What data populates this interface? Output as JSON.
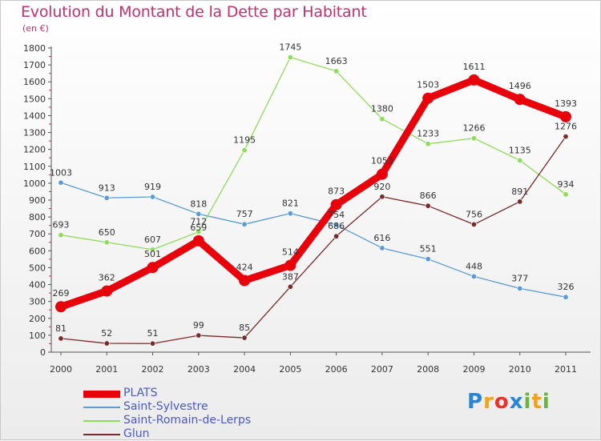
{
  "title": "Evolution du Montant de la Dette par Habitant",
  "subtitle": "(en €)",
  "brand": {
    "letters": [
      "P",
      "r",
      "o",
      "x",
      "i",
      "t",
      "i"
    ],
    "colors": [
      "#2a84d6",
      "#f1a21a",
      "#e6352b",
      "#2a84d6",
      "#6cb33f",
      "#f1a21a",
      "#6cb33f"
    ]
  },
  "chart_data": {
    "type": "line",
    "title": "Evolution du Montant de la Dette par Habitant",
    "subtitle": "(en €)",
    "categories": [
      "2000",
      "2001",
      "2002",
      "2003",
      "2004",
      "2005",
      "2006",
      "2007",
      "2008",
      "2009",
      "2010",
      "2011"
    ],
    "ylim": [
      0,
      1800
    ],
    "yticks": [
      "0",
      "100",
      "200",
      "300",
      "400",
      "500",
      "600",
      "700",
      "800",
      "900",
      "1000",
      "1100",
      "1200",
      "1300",
      "1400",
      "1500",
      "1600",
      "1700",
      "1800"
    ],
    "grid": false,
    "legend_position": "bottom-left",
    "series": [
      {
        "name": "PLATS",
        "color": "#e8000b",
        "values": [
          269,
          362,
          501,
          659,
          424,
          514,
          873,
          1053,
          1503,
          1611,
          1496,
          1393
        ],
        "labels": [
          "269",
          "362",
          "501",
          "659",
          "424",
          "514",
          "873",
          "1053",
          "1503",
          "1611",
          "1496",
          "1393"
        ]
      },
      {
        "name": "Saint-Sylvestre",
        "color": "#5b9bd5",
        "values": [
          1003,
          913,
          919,
          818,
          757,
          821,
          754,
          616,
          551,
          448,
          377,
          326
        ],
        "labels": [
          "1003",
          "913",
          "919",
          "818",
          "757",
          "821",
          "754",
          "616",
          "551",
          "448",
          "377",
          "326"
        ]
      },
      {
        "name": "Saint-Romain-de-Lerps",
        "color": "#8fdc5a",
        "values": [
          693,
          650,
          607,
          712,
          1195,
          1745,
          1663,
          1380,
          1233,
          1266,
          1135,
          934
        ],
        "labels": [
          "693",
          "650",
          "607",
          "712",
          "1195",
          "1745",
          "1663",
          "1380",
          "1233",
          "1266",
          "1135",
          "934"
        ]
      },
      {
        "name": "Glun",
        "color": "#7a2a2a",
        "values": [
          81,
          52,
          51,
          99,
          85,
          387,
          686,
          920,
          866,
          756,
          891,
          1276
        ],
        "labels": [
          "81",
          "52",
          "51",
          "99",
          "85",
          "387",
          "686",
          "920",
          "866",
          "756",
          "891",
          "1276"
        ]
      }
    ]
  }
}
